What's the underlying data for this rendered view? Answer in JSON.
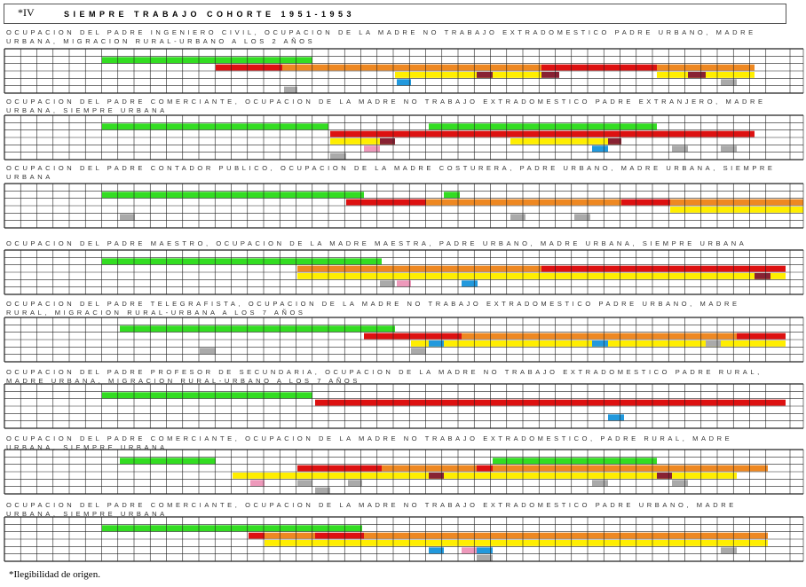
{
  "header": {
    "mark": "*IV",
    "title": "SIEMPRE TRABAJO COHORTE 1951-1953"
  },
  "blocks": [
    {
      "heading": "OCUPACION DEL PADRE INGENIERO CIVIL, OCUPACION DE LA MADRE NO TRABAJO EXTRADOMESTICO PADRE URBANO, MADRE URBANA, MIGRACION RURAL-URBANO A LOS 2 AÑOS"
    },
    {
      "heading": "OCUPACION DEL PADRE COMERCIANTE, OCUPACION DE LA MADRE NO TRABAJO EXTRADOMESTICO PADRE EXTRANJERO, MADRE URBANA, SIEMPRE URBANA"
    },
    {
      "heading": "OCUPACION DEL PADRE CONTADOR PUBLICO, OCUPACION DE LA MADRE COSTURERA, PADRE URBANO, MADRE URBANA, SIEMPRE URBANA"
    },
    {
      "heading": "OCUPACION DEL PADRE MAESTRO, OCUPACION DE LA MADRE MAESTRA, PADRE URBANO, MADRE URBANA, SIEMPRE URBANA"
    },
    {
      "heading": "OCUPACION DEL PADRE TELEGRAFISTA, OCUPACION DE LA MADRE NO TRABAJO EXTRADOMESTICO PADRE URBANO, MADRE RURAL, MIGRACION RURAL-URBANA A LOS 7 AÑOS"
    },
    {
      "heading": "OCUPACION DEL PADRE PROFESOR DE SECUNDARIA, OCUPACION DE LA MADRE NO TRABAJO EXTRADOMESTICO PADRE RURAL, MADRE URBANA, MIGRACION RURAL-URBANO A LOS 7 AÑOS"
    },
    {
      "heading": "OCUPACION DEL PADRE COMERCIANTE, OCUPACION DE LA MADRE NO TRABAJO EXTRADOMESTICO, PADRE RURAL, MADRE URBANA, SIEMPRE URBANA"
    },
    {
      "heading": "OCUPACION DEL PADRE COMERCIANTE, OCUPACION DE LA MADRE NO TRABAJO EXTRADOMESTICO PADRE URBANO, MADRE URBANA, SIEMPRE URBANA"
    }
  ],
  "footnote": "*Ilegibilidad de origen."
}
